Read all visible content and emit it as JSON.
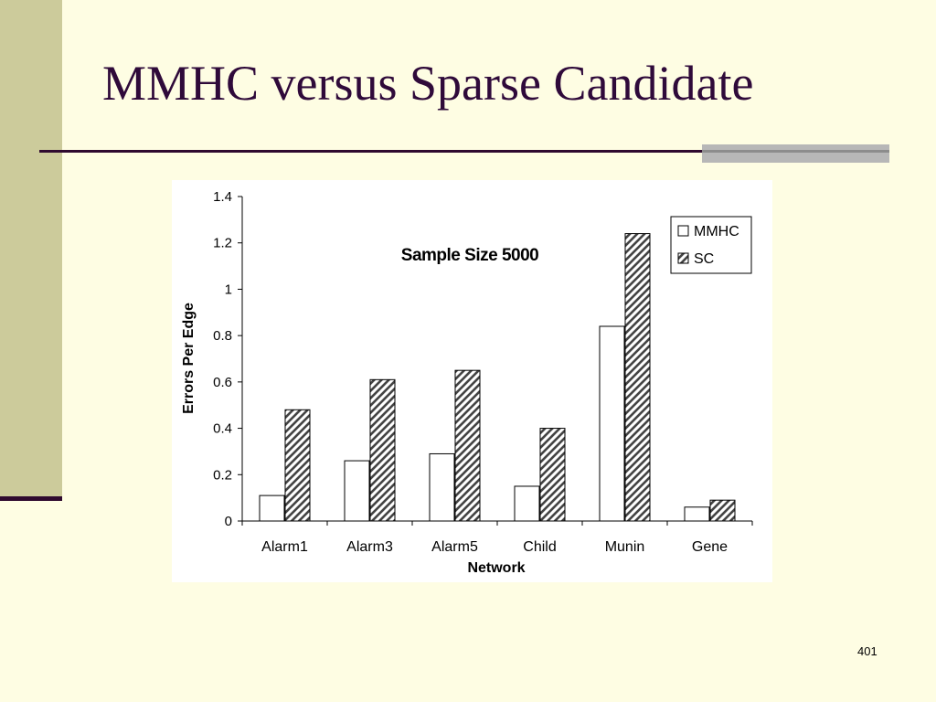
{
  "slide": {
    "title": "MMHC versus Sparse Candidate",
    "page_number": "401"
  },
  "colors": {
    "background": "#fefde3",
    "left_band": "#cccb9b",
    "title_text": "#2f0a3a",
    "rule": "#2f0a2f"
  },
  "chart_data": {
    "type": "bar",
    "title": "Sample Size 5000",
    "xlabel": "Network",
    "ylabel": "Errors Per Edge",
    "categories": [
      "Alarm1",
      "Alarm3",
      "Alarm5",
      "Child",
      "Munin",
      "Gene"
    ],
    "series": [
      {
        "name": "MMHC",
        "values": [
          0.11,
          0.26,
          0.29,
          0.15,
          0.84,
          0.06
        ],
        "fill": "white"
      },
      {
        "name": "SC",
        "values": [
          0.48,
          0.61,
          0.65,
          0.4,
          1.24,
          0.09
        ],
        "fill": "hatched"
      }
    ],
    "ylim": [
      0,
      1.4
    ],
    "yticks": [
      "0",
      "0.2",
      "0.4",
      "0.6",
      "0.8",
      "1",
      "1.2",
      "1.4"
    ],
    "grid": false,
    "legend_position": "top-right"
  }
}
